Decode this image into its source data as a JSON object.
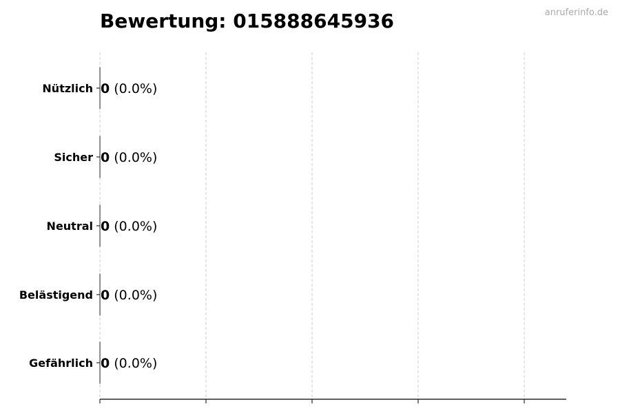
{
  "chart_data": {
    "type": "bar",
    "orientation": "horizontal",
    "title": "Bewertung: 015888645936",
    "watermark": "anruferinfo.de",
    "categories": [
      "Nützlich",
      "Sicher",
      "Neutral",
      "Belästigend",
      "Gefährlich"
    ],
    "values": [
      0,
      0,
      0,
      0,
      0
    ],
    "labels": [
      {
        "count": "0",
        "percent": "(0.0%)"
      },
      {
        "count": "0",
        "percent": "(0.0%)"
      },
      {
        "count": "0",
        "percent": "(0.0%)"
      },
      {
        "count": "0",
        "percent": "(0.0%)"
      },
      {
        "count": "0",
        "percent": "(0.0%)"
      }
    ],
    "xlabel": "",
    "ylabel": "",
    "x_tick_labels_shown": false,
    "grid": "x, dashed",
    "colors": {
      "grid": "#cccccc",
      "axis": "#000000",
      "watermark": "#aaaaaa"
    }
  }
}
